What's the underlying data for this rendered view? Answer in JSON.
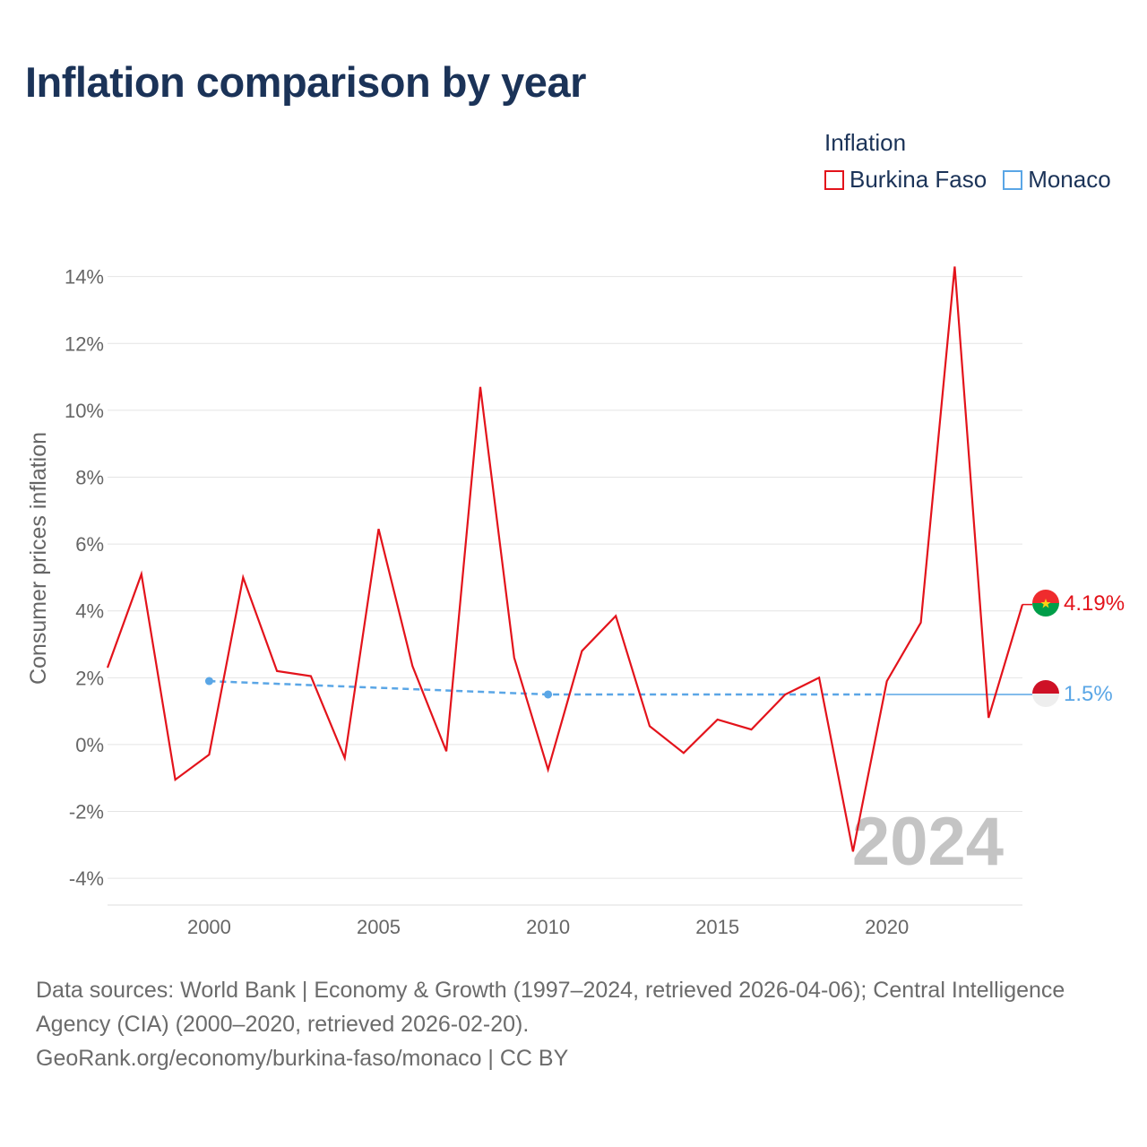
{
  "title": "Inflation comparison by year",
  "legend": {
    "title": "Inflation",
    "items": [
      {
        "label": "Burkina Faso",
        "color": "#e3131b"
      },
      {
        "label": "Monaco",
        "color": "#5aa6e6"
      }
    ]
  },
  "chart_data": {
    "type": "line",
    "title": "Inflation comparison by year",
    "xlabel": "",
    "ylabel": "Consumer prices inflation",
    "xlim": [
      1997,
      2024
    ],
    "ylim": [
      -4.8,
      14.5
    ],
    "x_ticks": [
      2000,
      2005,
      2010,
      2015,
      2020
    ],
    "y_ticks": [
      {
        "value": -4,
        "label": "-4%"
      },
      {
        "value": -2,
        "label": "-2%"
      },
      {
        "value": 0,
        "label": "0%"
      },
      {
        "value": 2,
        "label": "2%"
      },
      {
        "value": 4,
        "label": "4%"
      },
      {
        "value": 6,
        "label": "6%"
      },
      {
        "value": 8,
        "label": "8%"
      },
      {
        "value": 10,
        "label": "10%"
      },
      {
        "value": 12,
        "label": "12%"
      },
      {
        "value": 14,
        "label": "14%"
      }
    ],
    "grid": true,
    "watermark": "2024",
    "series": [
      {
        "name": "Burkina Faso",
        "color": "#e3131b",
        "x": [
          1997,
          1998,
          1999,
          2000,
          2001,
          2002,
          2003,
          2004,
          2005,
          2006,
          2007,
          2008,
          2009,
          2010,
          2011,
          2012,
          2013,
          2014,
          2015,
          2016,
          2017,
          2018,
          2019,
          2020,
          2021,
          2022,
          2023,
          2024
        ],
        "values": [
          2.3,
          5.1,
          -1.05,
          -0.3,
          5.0,
          2.2,
          2.05,
          -0.4,
          6.45,
          2.35,
          -0.2,
          10.7,
          2.6,
          -0.75,
          2.8,
          3.85,
          0.55,
          -0.25,
          0.75,
          0.45,
          1.5,
          2.0,
          -3.2,
          1.9,
          3.65,
          14.3,
          0.8,
          4.19
        ],
        "end_label": "4.19%"
      },
      {
        "name": "Monaco",
        "color": "#5aa6e6",
        "x": [
          2000,
          2010,
          2020
        ],
        "values": [
          1.9,
          1.5,
          1.5
        ],
        "end_value": 1.5,
        "end_label": "1.5%"
      }
    ]
  },
  "footer": {
    "sources": "Data sources: World Bank | Economy & Growth (1997–2024, retrieved 2026-04-06); Central Intelligence Agency (CIA) (2000–2020, retrieved 2026-02-20).",
    "attribution": "GeoRank.org/economy/burkina-faso/monaco | CC BY"
  }
}
